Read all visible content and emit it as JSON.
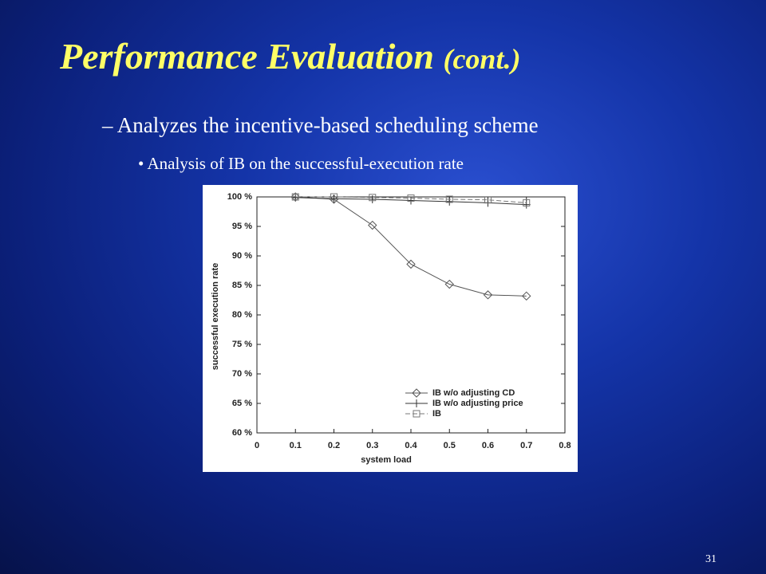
{
  "slide": {
    "title": "Performance Evaluation",
    "title_suffix": "(cont.)",
    "bullet": "Analyzes the incentive-based scheduling scheme",
    "sub_bullet": "Analysis of IB on the successful-execution rate",
    "page_number": "31"
  },
  "chart_data": {
    "type": "line",
    "xlabel": "system load",
    "ylabel": "successful execution rate",
    "x": [
      0.1,
      0.2,
      0.3,
      0.4,
      0.5,
      0.6,
      0.7
    ],
    "xlim": [
      0,
      0.8
    ],
    "xticks": [
      0,
      0.1,
      0.2,
      0.3,
      0.4,
      0.5,
      0.6,
      0.7,
      0.8
    ],
    "ylim": [
      60,
      100
    ],
    "yticks": [
      {
        "value": 60,
        "label": "60 %"
      },
      {
        "value": 65,
        "label": "65 %"
      },
      {
        "value": 70,
        "label": "70 %"
      },
      {
        "value": 75,
        "label": "75 %"
      },
      {
        "value": 80,
        "label": "80 %"
      },
      {
        "value": 85,
        "label": "85 %"
      },
      {
        "value": 90,
        "label": "90 %"
      },
      {
        "value": 95,
        "label": "95 %"
      },
      {
        "value": 100,
        "label": "100 %"
      }
    ],
    "legend": "lower right",
    "series": [
      {
        "name": "IB w/o adjusting CD",
        "color": "#555555",
        "marker": "diamond",
        "dash": "solid",
        "values": [
          100,
          99.6,
          95.2,
          88.6,
          85.2,
          83.4,
          83.2
        ]
      },
      {
        "name": "IB w/o adjusting price",
        "color": "#333333",
        "marker": "plus",
        "dash": "solid",
        "values": [
          99.9,
          99.7,
          99.6,
          99.4,
          99.2,
          99.0,
          98.7
        ]
      },
      {
        "name": "IB",
        "color": "#777777",
        "marker": "square",
        "dash": "dashed",
        "values": [
          100,
          100,
          99.9,
          99.8,
          99.6,
          99.5,
          99.0
        ]
      }
    ]
  }
}
